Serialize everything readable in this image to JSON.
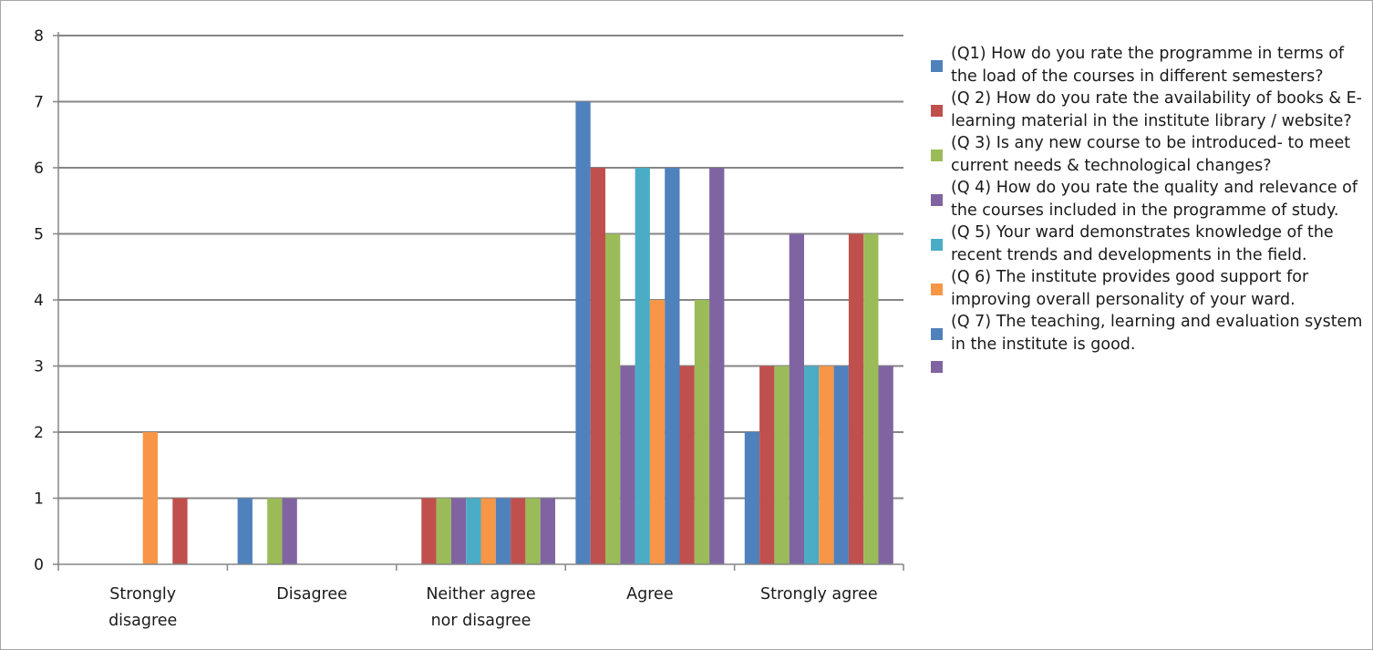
{
  "chart_data": {
    "type": "bar",
    "categories": [
      "Strongly disagree",
      "Disagree",
      "Neither agree nor disagree",
      "Agree",
      "Strongly agree"
    ],
    "category_lines": [
      [
        "Strongly",
        "disagree"
      ],
      [
        "Disagree"
      ],
      [
        "Neither agree",
        "nor disagree"
      ],
      [
        "Agree"
      ],
      [
        "Strongly agree"
      ]
    ],
    "ylim": [
      0,
      8
    ],
    "yticks": [
      "0",
      "1",
      "2",
      "3",
      "4",
      "5",
      "6",
      "7",
      "8"
    ],
    "grid": true,
    "legend_position": "right",
    "series": [
      {
        "name": "(Q1) How do you rate the programme in terms of the load of the courses in different semesters?",
        "color": "#4f81bd",
        "values": [
          0,
          1,
          0,
          7,
          2
        ]
      },
      {
        "name": "(Q 2) How do you rate the availability of books & E-learning material in the institute library / website?",
        "color": "#c0504d",
        "values": [
          0,
          0,
          1,
          6,
          3
        ]
      },
      {
        "name": "(Q 3) Is any new course to be introduced- to meet current needs & technological changes?",
        "color": "#9bbb59",
        "values": [
          0,
          1,
          1,
          5,
          3
        ]
      },
      {
        "name": "(Q 4) How do you rate the quality and relevance of the courses included in the programme of study.",
        "color": "#8064a2",
        "values": [
          0,
          1,
          1,
          3,
          5
        ]
      },
      {
        "name": "(Q 5) Your ward demonstrates knowledge of the recent trends and developments in the field.",
        "color": "#4bacc6",
        "values": [
          0,
          0,
          1,
          6,
          3
        ]
      },
      {
        "name": "(Q 6) The institute provides good support for improving overall personality of your ward.",
        "color": "#f79646",
        "values": [
          2,
          0,
          1,
          4,
          3
        ]
      },
      {
        "name": "(Q 7) The teaching, learning and evaluation system in the institute is good.",
        "color": "#4f81bd",
        "values": [
          0,
          0,
          1,
          6,
          3
        ]
      },
      {
        "name": "",
        "color": "#c0504d",
        "values": [
          1,
          0,
          1,
          3,
          5
        ]
      },
      {
        "name": "",
        "color": "#9bbb59",
        "values": [
          0,
          0,
          1,
          4,
          5
        ]
      },
      {
        "name": "",
        "color": "#8064a2",
        "values": [
          0,
          0,
          1,
          6,
          3
        ]
      }
    ],
    "legend": [
      {
        "text": "(Q1) How do you rate the programme in terms of the load of the courses in different semesters?",
        "color": "#4f81bd"
      },
      {
        "text": "(Q 2) How do you rate the availability of books & E-learning material in the institute library / website?",
        "color": "#c0504d"
      },
      {
        "text": "(Q 3) Is any new course to be introduced- to meet current needs & technological changes?",
        "color": "#9bbb59"
      },
      {
        "text": "(Q 4) How do you rate the quality and relevance of the courses included in the programme of study.",
        "color": "#8064a2"
      },
      {
        "text": "(Q 5) Your ward demonstrates knowledge of the recent trends and developments in the field.",
        "color": "#4bacc6"
      },
      {
        "text": "(Q 6) The institute provides good support for improving overall personality of your ward.",
        "color": "#f79646"
      },
      {
        "text": "(Q 7) The teaching, learning and evaluation system in the institute is good.",
        "color": "#4f81bd"
      },
      {
        "text": "",
        "color": "#8064a2"
      }
    ]
  }
}
